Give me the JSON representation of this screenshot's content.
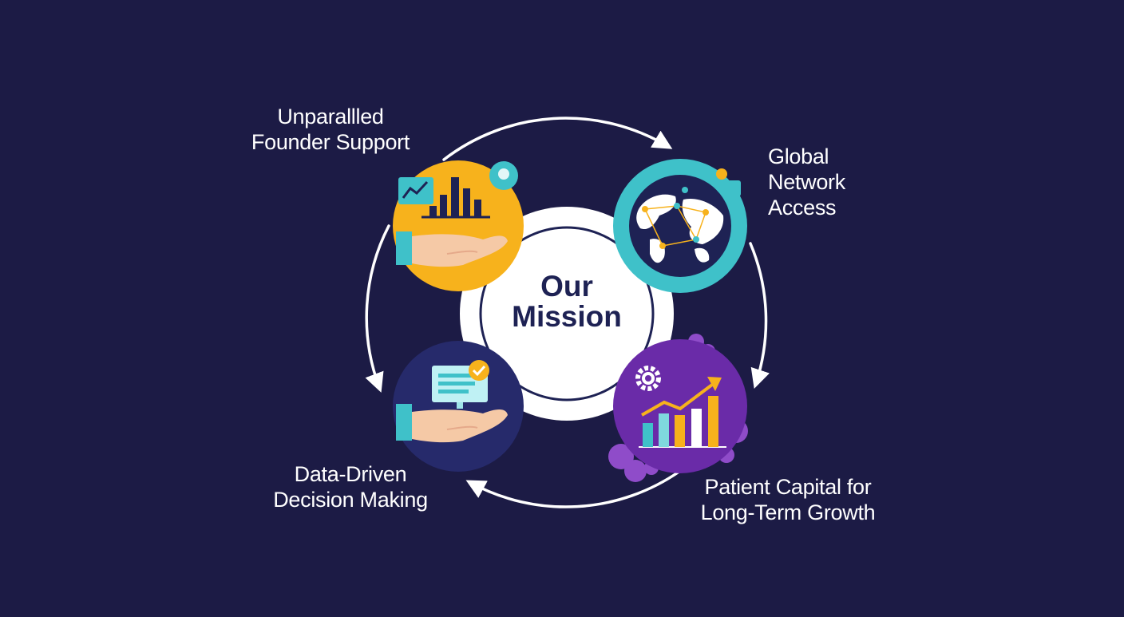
{
  "center": {
    "line1": "Our",
    "line2": "Mission"
  },
  "nodes": {
    "founder_support": {
      "line1": "Unparallled",
      "line2": "Founder Support",
      "color": "#f7b21c"
    },
    "global_network": {
      "line1": "Global",
      "line2": "Network",
      "line3": "Access",
      "color": "#3fc1c9"
    },
    "data_driven": {
      "line1": "Data-Driven",
      "line2": "Decision Making",
      "color": "#262a6b"
    },
    "patient_capital": {
      "line1": "Patient Capital for",
      "line2": "Long-Term Growth",
      "color": "#6a2ba8"
    }
  },
  "colors": {
    "background": "#1c1b45",
    "center_fill": "#ffffff",
    "center_text": "#1e2254",
    "teal": "#3fc1c9",
    "gold": "#f7b21c",
    "purple": "#8f4cc9",
    "navy": "#1e2254",
    "skin": "#f5c9a6"
  },
  "cycle_direction": "clockwise"
}
